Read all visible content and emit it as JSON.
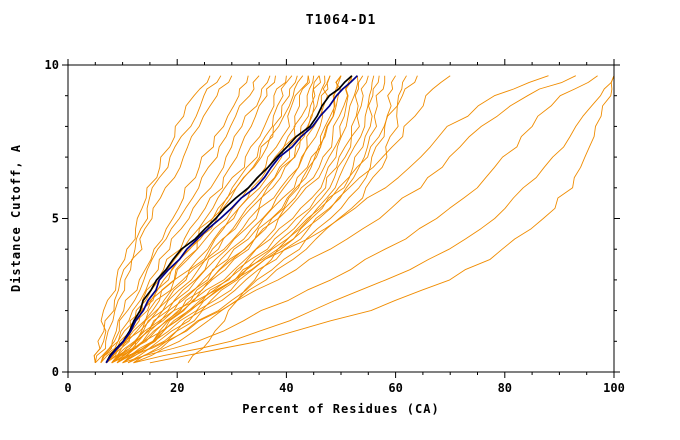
{
  "chart_data": {
    "type": "line",
    "title": "T1064-D1",
    "xlabel": "Percent of Residues (CA)",
    "ylabel": "Distance Cutoff, A",
    "xlim": [
      0,
      100
    ],
    "ylim": [
      0,
      10
    ],
    "x_major_ticks": [
      0,
      20,
      40,
      60,
      80,
      100
    ],
    "x_minor_step": 5,
    "y_major_ticks": [
      0,
      5,
      10
    ],
    "y_minor_step": 1,
    "grid": false,
    "legend": "none",
    "cutoffs": [
      0.3,
      1,
      2,
      3,
      4,
      5,
      6,
      7,
      8,
      9,
      9.65
    ],
    "series_groups": [
      {
        "name": "predicted-models",
        "color": "#f08c00",
        "width": 0.9,
        "curves": [
          [
            5,
            6,
            7,
            9,
            11,
            13,
            15,
            17,
            20,
            23,
            26
          ],
          [
            5,
            6,
            8,
            10,
            12,
            14,
            16,
            19,
            22,
            25,
            28
          ],
          [
            5,
            7,
            9,
            11,
            13,
            15,
            18,
            21,
            24,
            27,
            30
          ],
          [
            6,
            8,
            10,
            13,
            16,
            19,
            22,
            25,
            28,
            31,
            33
          ],
          [
            5,
            8,
            11,
            14,
            17,
            20,
            24,
            27,
            30,
            33,
            35
          ],
          [
            6,
            9,
            12,
            15,
            18,
            22,
            26,
            29,
            32,
            35,
            37
          ],
          [
            7,
            10,
            13,
            16,
            20,
            24,
            28,
            31,
            34,
            36,
            38
          ],
          [
            6,
            9,
            13,
            17,
            21,
            25,
            29,
            33,
            36,
            38,
            40
          ],
          [
            7,
            11,
            14,
            18,
            22,
            26,
            30,
            34,
            37,
            39,
            41
          ],
          [
            8,
            11,
            15,
            19,
            23,
            27,
            31,
            35,
            38,
            40,
            42
          ],
          [
            6,
            10,
            14,
            18,
            22,
            27,
            31,
            35,
            38,
            41,
            43
          ],
          [
            7,
            10,
            14,
            19,
            24,
            29,
            33,
            37,
            40,
            42,
            44
          ],
          [
            8,
            12,
            16,
            21,
            26,
            30,
            34,
            38,
            41,
            43,
            44
          ],
          [
            7,
            11,
            15,
            20,
            25,
            30,
            35,
            39,
            42,
            44,
            45
          ],
          [
            8,
            12,
            17,
            22,
            27,
            32,
            36,
            40,
            43,
            45,
            46
          ],
          [
            9,
            13,
            18,
            23,
            28,
            33,
            37,
            41,
            44,
            45,
            46
          ],
          [
            7,
            11,
            16,
            21,
            27,
            32,
            37,
            41,
            44,
            46,
            47
          ],
          [
            8,
            13,
            18,
            24,
            29,
            34,
            39,
            43,
            45,
            47,
            48
          ],
          [
            9,
            14,
            19,
            25,
            30,
            35,
            40,
            43,
            46,
            47,
            48
          ],
          [
            8,
            13,
            19,
            25,
            31,
            36,
            41,
            45,
            47,
            49,
            50
          ],
          [
            9,
            14,
            20,
            26,
            32,
            37,
            42,
            45,
            48,
            49,
            50
          ],
          [
            10,
            15,
            21,
            27,
            33,
            38,
            42,
            46,
            48,
            49,
            50
          ],
          [
            8,
            14,
            20,
            26,
            32,
            38,
            43,
            47,
            49,
            51,
            52
          ],
          [
            9,
            15,
            21,
            28,
            34,
            39,
            44,
            48,
            50,
            51,
            52
          ],
          [
            10,
            16,
            22,
            29,
            35,
            41,
            46,
            49,
            51,
            52,
            53
          ],
          [
            9,
            15,
            22,
            29,
            36,
            42,
            47,
            50,
            52,
            53,
            54
          ],
          [
            10,
            16,
            23,
            30,
            37,
            43,
            48,
            51,
            53,
            54,
            55
          ],
          [
            11,
            17,
            24,
            31,
            38,
            44,
            49,
            52,
            54,
            55,
            56
          ],
          [
            10,
            17,
            24,
            32,
            39,
            45,
            50,
            53,
            55,
            56,
            57
          ],
          [
            11,
            18,
            25,
            33,
            40,
            46,
            51,
            54,
            56,
            57,
            58
          ],
          [
            12,
            19,
            27,
            35,
            42,
            48,
            53,
            56,
            58,
            59,
            60
          ],
          [
            12,
            20,
            28,
            36,
            44,
            50,
            55,
            58,
            60,
            61,
            62
          ],
          [
            8,
            14,
            22,
            30,
            38,
            46,
            52,
            58,
            62,
            66,
            70
          ],
          [
            7,
            12,
            20,
            30,
            40,
            50,
            58,
            64,
            70,
            78,
            88
          ],
          [
            8,
            18,
            28,
            38,
            48,
            57,
            64,
            70,
            76,
            84,
            93
          ],
          [
            10,
            24,
            36,
            48,
            58,
            68,
            75,
            80,
            85,
            90,
            97
          ],
          [
            12,
            30,
            45,
            58,
            70,
            78,
            84,
            89,
            93,
            97,
            100
          ],
          [
            15,
            35,
            55,
            70,
            80,
            87,
            92,
            95,
            97,
            99,
            100
          ],
          [
            22,
            26,
            30,
            34,
            38,
            44,
            50,
            55,
            58,
            61,
            64
          ]
        ]
      },
      {
        "name": "highlighted-model-black",
        "color": "#000000",
        "width": 1.7,
        "curves": [
          [
            7,
            10,
            13,
            16,
            21,
            27,
            33,
            38,
            44,
            48,
            52
          ]
        ]
      },
      {
        "name": "highlighted-model-navy",
        "color": "#00008c",
        "width": 1.7,
        "curves": [
          [
            7,
            10,
            14,
            17,
            22,
            28,
            34,
            39,
            45,
            49,
            53
          ]
        ]
      }
    ]
  }
}
